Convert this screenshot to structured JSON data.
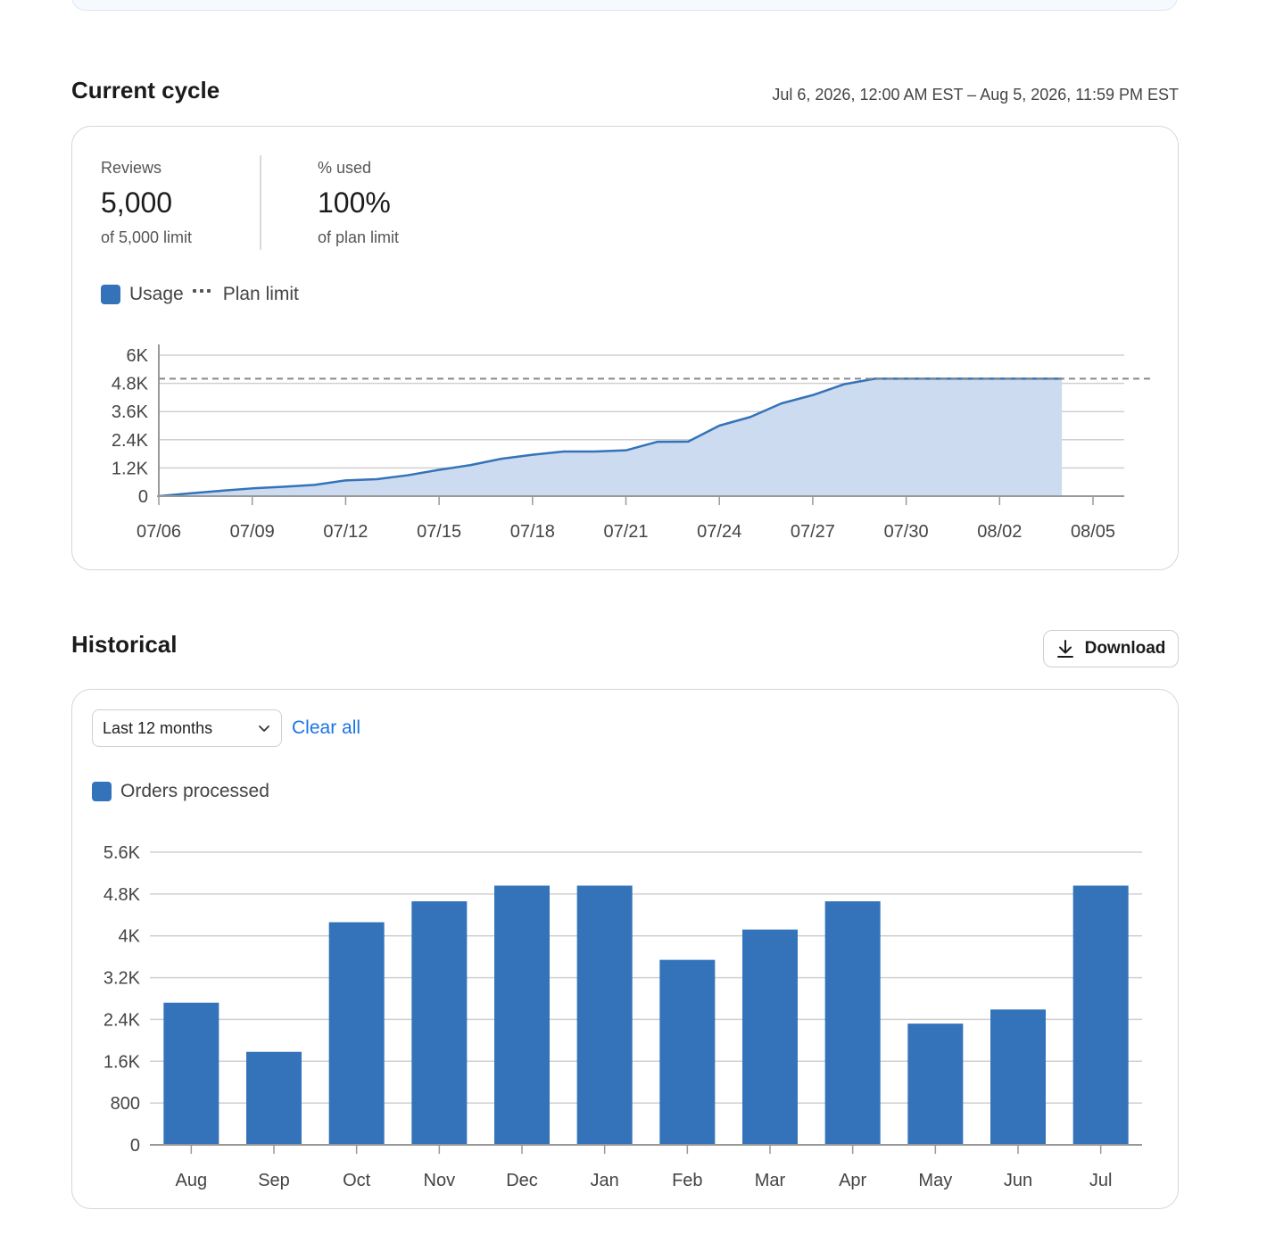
{
  "current_cycle": {
    "title": "Current cycle",
    "range": "Jul 6, 2026, 12:00 AM EST – Aug 5, 2026, 11:59 PM EST",
    "stats": [
      {
        "label": "Reviews",
        "value": "5,000",
        "sub": "of 5,000 limit"
      },
      {
        "label": "% used",
        "value": "100%",
        "sub": "of plan limit"
      }
    ],
    "legend": {
      "usage": "Usage",
      "plan_limit": "Plan limit"
    }
  },
  "historical": {
    "title": "Historical",
    "download_label": "Download",
    "filter": {
      "selected": "Last 12 months"
    },
    "clear_label": "Clear all",
    "legend": "Orders processed"
  },
  "colors": {
    "series": "#3473b9",
    "area_fill": "#ccdbef",
    "grid": "#d0d0d0",
    "limit_line": "#888888"
  },
  "icons": {
    "download": "download-icon",
    "select": "chevron-down-icon"
  },
  "chart_data": [
    {
      "type": "area",
      "series_name": "Usage",
      "x": [
        "07/06",
        "07/07",
        "07/08",
        "07/09",
        "07/10",
        "07/11",
        "07/12",
        "07/13",
        "07/14",
        "07/15",
        "07/16",
        "07/17",
        "07/18",
        "07/19",
        "07/20",
        "07/21",
        "07/22",
        "07/23",
        "07/24",
        "07/25",
        "07/26",
        "07/27",
        "07/28",
        "07/29",
        "07/30",
        "07/31",
        "08/01",
        "08/02",
        "08/03",
        "08/04"
      ],
      "values": [
        0,
        120,
        230,
        330,
        400,
        480,
        670,
        720,
        890,
        1120,
        1320,
        1590,
        1760,
        1900,
        1900,
        1950,
        2310,
        2320,
        3000,
        3370,
        3950,
        4300,
        4760,
        5000,
        5000,
        5000,
        5000,
        5000,
        5000,
        5000
      ],
      "plan_limit": 5000,
      "x_ticks": [
        "07/06",
        "07/09",
        "07/12",
        "07/15",
        "07/18",
        "07/21",
        "07/24",
        "07/27",
        "07/30",
        "08/02",
        "08/05"
      ],
      "y_ticks": [
        "0",
        "1.2K",
        "2.4K",
        "3.6K",
        "4.8K",
        "6K"
      ],
      "ylim": [
        0,
        6000
      ]
    },
    {
      "type": "bar",
      "categories": [
        "Aug",
        "Sep",
        "Oct",
        "Nov",
        "Dec",
        "Jan",
        "Feb",
        "Mar",
        "Apr",
        "May",
        "Jun",
        "Jul"
      ],
      "values": [
        2720,
        1780,
        4260,
        4660,
        4960,
        4960,
        3540,
        4120,
        4660,
        2320,
        2590,
        4960
      ],
      "y_ticks": [
        "0",
        "800",
        "1.6K",
        "2.4K",
        "3.2K",
        "4K",
        "4.8K",
        "5.6K"
      ],
      "ylim": [
        0,
        5600
      ]
    }
  ]
}
